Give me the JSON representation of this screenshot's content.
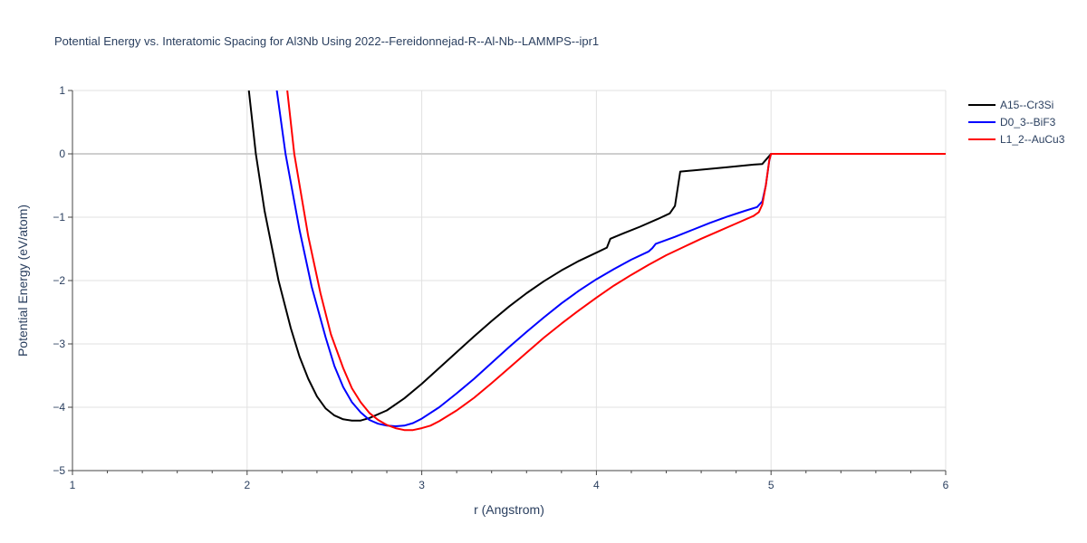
{
  "chart_data": {
    "type": "line",
    "title": "Potential Energy vs. Interatomic Spacing for Al3Nb Using 2022--Fereidonnejad-R--Al-Nb--LAMMPS--ipr1",
    "xlabel": "r (Angstrom)",
    "ylabel": "Potential Energy (eV/atom)",
    "xlim": [
      1,
      6
    ],
    "ylim": [
      -5,
      1
    ],
    "xticks": [
      1,
      2,
      3,
      4,
      5,
      6
    ],
    "yticks": [
      1,
      0,
      -1,
      -2,
      -3,
      -4,
      -5
    ],
    "ytick_labels": [
      "1",
      "0",
      "−1",
      "−2",
      "−3",
      "−4",
      "−5"
    ],
    "grid": true,
    "legend_position": "top-right",
    "series": [
      {
        "name": "A15--Cr3Si",
        "color": "#000000",
        "points": [
          [
            2.01,
            1.0
          ],
          [
            2.05,
            0.0
          ],
          [
            2.1,
            -0.9
          ],
          [
            2.18,
            -2.0
          ],
          [
            2.25,
            -2.75
          ],
          [
            2.3,
            -3.2
          ],
          [
            2.35,
            -3.55
          ],
          [
            2.4,
            -3.83
          ],
          [
            2.45,
            -4.02
          ],
          [
            2.5,
            -4.13
          ],
          [
            2.55,
            -4.19
          ],
          [
            2.6,
            -4.21
          ],
          [
            2.65,
            -4.21
          ],
          [
            2.7,
            -4.17
          ],
          [
            2.8,
            -4.05
          ],
          [
            2.9,
            -3.86
          ],
          [
            3.0,
            -3.63
          ],
          [
            3.1,
            -3.38
          ],
          [
            3.2,
            -3.13
          ],
          [
            3.3,
            -2.88
          ],
          [
            3.4,
            -2.64
          ],
          [
            3.5,
            -2.41
          ],
          [
            3.6,
            -2.2
          ],
          [
            3.7,
            -2.01
          ],
          [
            3.8,
            -1.84
          ],
          [
            3.9,
            -1.69
          ],
          [
            4.0,
            -1.56
          ],
          [
            4.06,
            -1.48
          ],
          [
            4.08,
            -1.34
          ],
          [
            4.15,
            -1.26
          ],
          [
            4.25,
            -1.15
          ],
          [
            4.35,
            -1.03
          ],
          [
            4.42,
            -0.94
          ],
          [
            4.45,
            -0.82
          ],
          [
            4.48,
            -0.28
          ],
          [
            4.6,
            -0.25
          ],
          [
            4.75,
            -0.21
          ],
          [
            4.9,
            -0.17
          ],
          [
            4.95,
            -0.16
          ],
          [
            5.0,
            0.0
          ],
          [
            6.0,
            0.0
          ]
        ]
      },
      {
        "name": "D0_3--BiF3",
        "color": "#0000ff",
        "points": [
          [
            2.17,
            1.0
          ],
          [
            2.22,
            0.0
          ],
          [
            2.3,
            -1.2
          ],
          [
            2.37,
            -2.1
          ],
          [
            2.45,
            -2.9
          ],
          [
            2.5,
            -3.35
          ],
          [
            2.55,
            -3.68
          ],
          [
            2.6,
            -3.92
          ],
          [
            2.65,
            -4.08
          ],
          [
            2.7,
            -4.2
          ],
          [
            2.75,
            -4.26
          ],
          [
            2.8,
            -4.29
          ],
          [
            2.85,
            -4.3
          ],
          [
            2.9,
            -4.29
          ],
          [
            2.95,
            -4.25
          ],
          [
            3.0,
            -4.18
          ],
          [
            3.1,
            -4.0
          ],
          [
            3.2,
            -3.78
          ],
          [
            3.3,
            -3.55
          ],
          [
            3.4,
            -3.3
          ],
          [
            3.5,
            -3.05
          ],
          [
            3.6,
            -2.81
          ],
          [
            3.7,
            -2.58
          ],
          [
            3.8,
            -2.36
          ],
          [
            3.9,
            -2.16
          ],
          [
            4.0,
            -1.98
          ],
          [
            4.1,
            -1.82
          ],
          [
            4.2,
            -1.67
          ],
          [
            4.3,
            -1.54
          ],
          [
            4.32,
            -1.49
          ],
          [
            4.34,
            -1.42
          ],
          [
            4.45,
            -1.31
          ],
          [
            4.55,
            -1.2
          ],
          [
            4.65,
            -1.09
          ],
          [
            4.75,
            -0.99
          ],
          [
            4.85,
            -0.9
          ],
          [
            4.92,
            -0.84
          ],
          [
            4.95,
            -0.75
          ],
          [
            4.97,
            -0.5
          ],
          [
            4.99,
            -0.1
          ],
          [
            5.0,
            0.0
          ],
          [
            6.0,
            0.0
          ]
        ]
      },
      {
        "name": "L1_2--AuCu3",
        "color": "#ff0000",
        "points": [
          [
            2.23,
            1.0
          ],
          [
            2.27,
            0.0
          ],
          [
            2.35,
            -1.3
          ],
          [
            2.42,
            -2.2
          ],
          [
            2.48,
            -2.85
          ],
          [
            2.55,
            -3.38
          ],
          [
            2.6,
            -3.7
          ],
          [
            2.65,
            -3.92
          ],
          [
            2.7,
            -4.09
          ],
          [
            2.75,
            -4.2
          ],
          [
            2.8,
            -4.28
          ],
          [
            2.85,
            -4.33
          ],
          [
            2.9,
            -4.36
          ],
          [
            2.95,
            -4.36
          ],
          [
            3.0,
            -4.33
          ],
          [
            3.05,
            -4.29
          ],
          [
            3.1,
            -4.22
          ],
          [
            3.2,
            -4.05
          ],
          [
            3.3,
            -3.85
          ],
          [
            3.4,
            -3.62
          ],
          [
            3.5,
            -3.38
          ],
          [
            3.6,
            -3.14
          ],
          [
            3.7,
            -2.9
          ],
          [
            3.8,
            -2.68
          ],
          [
            3.9,
            -2.47
          ],
          [
            4.0,
            -2.27
          ],
          [
            4.1,
            -2.08
          ],
          [
            4.2,
            -1.91
          ],
          [
            4.3,
            -1.75
          ],
          [
            4.4,
            -1.6
          ],
          [
            4.5,
            -1.47
          ],
          [
            4.6,
            -1.34
          ],
          [
            4.7,
            -1.22
          ],
          [
            4.8,
            -1.1
          ],
          [
            4.9,
            -0.98
          ],
          [
            4.93,
            -0.92
          ],
          [
            4.95,
            -0.8
          ],
          [
            4.97,
            -0.5
          ],
          [
            4.99,
            -0.1
          ],
          [
            5.0,
            0.0
          ],
          [
            6.0,
            0.0
          ]
        ]
      }
    ]
  }
}
